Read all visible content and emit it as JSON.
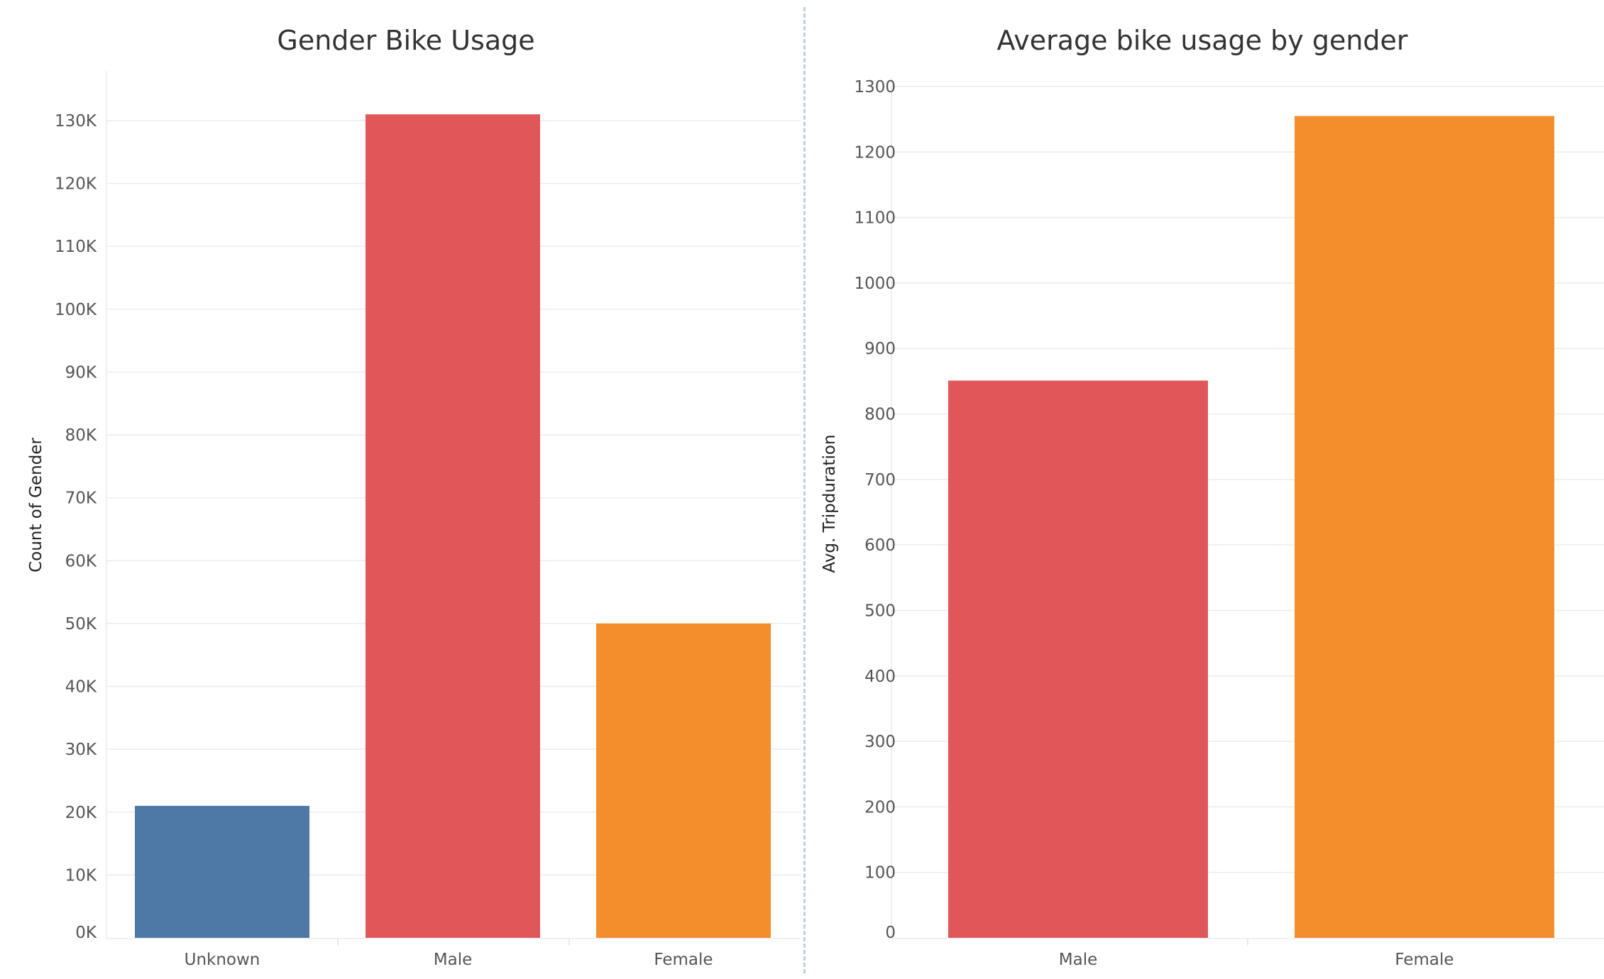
{
  "dashboard": {
    "colors": {
      "unknown": "#4e79a7",
      "male": "#e15759",
      "female": "#f28e2b"
    }
  },
  "chart_data": [
    {
      "type": "bar",
      "title": "Gender Bike Usage",
      "xlabel": "",
      "ylabel": "Count of Gender",
      "categories": [
        "Unknown",
        "Male",
        "Female"
      ],
      "values": [
        21000,
        131000,
        50000
      ],
      "colors": [
        "#4e79a7",
        "#e15759",
        "#f28e2b"
      ],
      "ylim": [
        0,
        130000
      ],
      "yticks": [
        0,
        10000,
        20000,
        30000,
        40000,
        50000,
        60000,
        70000,
        80000,
        90000,
        100000,
        110000,
        120000,
        130000
      ],
      "ytick_labels": [
        "0K",
        "10K",
        "20K",
        "30K",
        "40K",
        "50K",
        "60K",
        "70K",
        "80K",
        "90K",
        "100K",
        "110K",
        "120K",
        "130K"
      ],
      "grid": true
    },
    {
      "type": "bar",
      "title": "Average bike usage by gender",
      "xlabel": "",
      "ylabel": "Avg. Tripduration",
      "categories": [
        "Male",
        "Female"
      ],
      "values": [
        851,
        1255
      ],
      "colors": [
        "#e15759",
        "#f28e2b"
      ],
      "ylim": [
        0,
        1300
      ],
      "yticks": [
        0,
        100,
        200,
        300,
        400,
        500,
        600,
        700,
        800,
        900,
        1000,
        1100,
        1200,
        1300
      ],
      "ytick_labels": [
        "0",
        "100",
        "200",
        "300",
        "400",
        "500",
        "600",
        "700",
        "800",
        "900",
        "1000",
        "1100",
        "1200",
        "1300"
      ],
      "grid": true
    }
  ]
}
